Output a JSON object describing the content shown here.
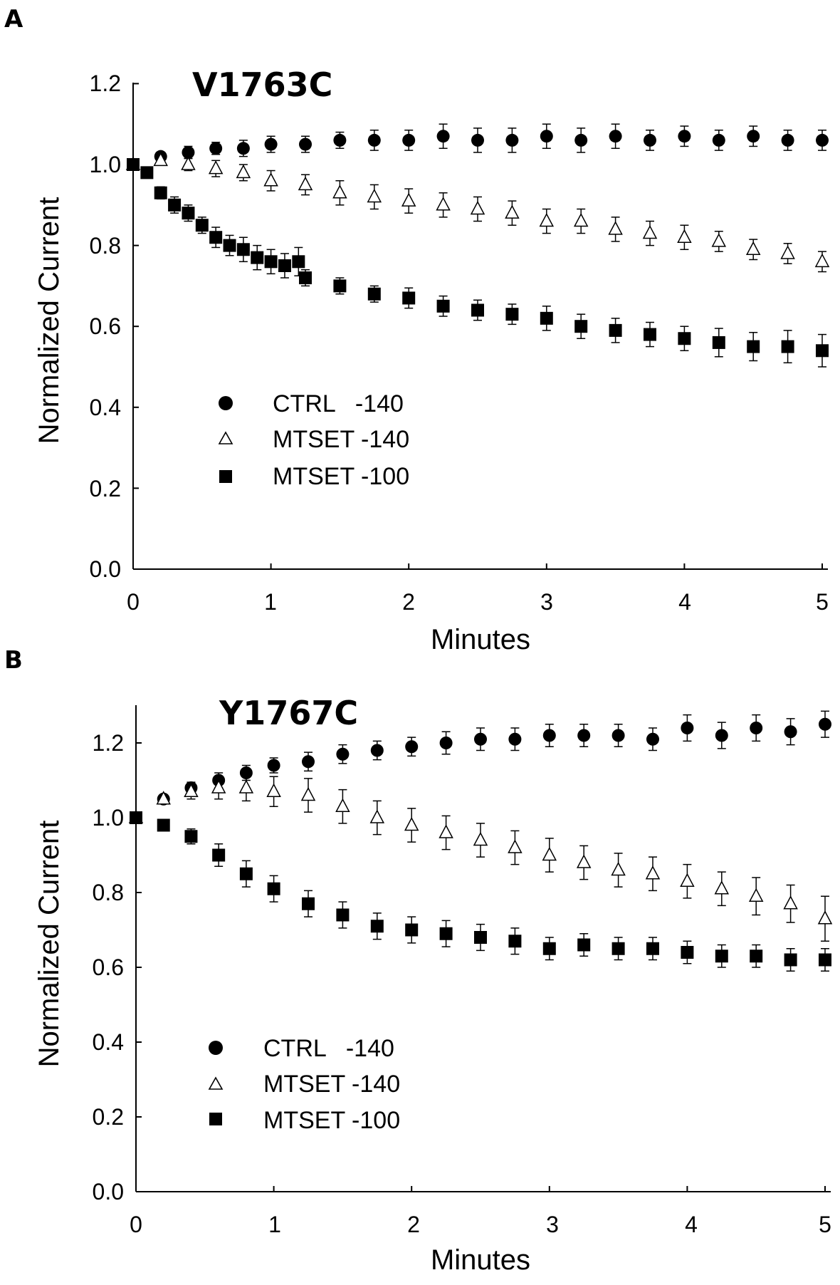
{
  "chart_data": [
    {
      "panel": "A",
      "title": "V1763C",
      "type": "scatter",
      "xlabel": "Minutes",
      "ylabel": "Normalized Current",
      "xlim": [
        0,
        5
      ],
      "ylim": [
        0,
        1.2
      ],
      "xticks": [
        "0",
        "1",
        "2",
        "3",
        "4",
        "5"
      ],
      "yticks": [
        "0.0",
        "0.2",
        "0.4",
        "0.6",
        "0.8",
        "1.0",
        "1.2"
      ],
      "series": [
        {
          "name": "CTRL   -140",
          "marker": "circle",
          "x": [
            0,
            0.2,
            0.4,
            0.6,
            0.8,
            1.0,
            1.25,
            1.5,
            1.75,
            2.0,
            2.25,
            2.5,
            2.75,
            3.0,
            3.25,
            3.5,
            3.75,
            4.0,
            4.25,
            4.5,
            4.75,
            5.0
          ],
          "y": [
            1.0,
            1.02,
            1.03,
            1.04,
            1.04,
            1.05,
            1.05,
            1.06,
            1.06,
            1.06,
            1.07,
            1.06,
            1.06,
            1.07,
            1.06,
            1.07,
            1.06,
            1.07,
            1.06,
            1.07,
            1.06,
            1.06
          ],
          "err": [
            0.005,
            0.01,
            0.015,
            0.015,
            0.02,
            0.02,
            0.02,
            0.02,
            0.025,
            0.025,
            0.03,
            0.03,
            0.03,
            0.03,
            0.03,
            0.03,
            0.025,
            0.025,
            0.025,
            0.025,
            0.025,
            0.025
          ]
        },
        {
          "name": "MTSET -140",
          "marker": "triangle",
          "x": [
            0,
            0.2,
            0.4,
            0.6,
            0.8,
            1.0,
            1.25,
            1.5,
            1.75,
            2.0,
            2.25,
            2.5,
            2.75,
            3.0,
            3.25,
            3.5,
            3.75,
            4.0,
            4.25,
            4.5,
            4.75,
            5.0
          ],
          "y": [
            1.0,
            1.01,
            1.0,
            0.99,
            0.98,
            0.96,
            0.95,
            0.93,
            0.92,
            0.91,
            0.9,
            0.89,
            0.88,
            0.86,
            0.86,
            0.84,
            0.83,
            0.82,
            0.81,
            0.79,
            0.78,
            0.76
          ],
          "err": [
            0.005,
            0.01,
            0.015,
            0.02,
            0.02,
            0.025,
            0.025,
            0.03,
            0.03,
            0.03,
            0.03,
            0.03,
            0.03,
            0.03,
            0.03,
            0.03,
            0.03,
            0.03,
            0.025,
            0.025,
            0.025,
            0.025
          ]
        },
        {
          "name": "MTSET -100",
          "marker": "square",
          "x": [
            0,
            0.1,
            0.2,
            0.3,
            0.4,
            0.5,
            0.6,
            0.7,
            0.8,
            0.9,
            1.0,
            1.1,
            1.2,
            1.25,
            1.5,
            1.75,
            2.0,
            2.25,
            2.5,
            2.75,
            3.0,
            3.25,
            3.5,
            3.75,
            4.0,
            4.25,
            4.5,
            4.75,
            5.0
          ],
          "y": [
            1.0,
            0.98,
            0.93,
            0.9,
            0.88,
            0.85,
            0.82,
            0.8,
            0.79,
            0.77,
            0.76,
            0.75,
            0.76,
            0.72,
            0.7,
            0.68,
            0.67,
            0.65,
            0.64,
            0.63,
            0.62,
            0.6,
            0.59,
            0.58,
            0.57,
            0.56,
            0.55,
            0.55,
            0.54
          ],
          "err": [
            0.005,
            0.01,
            0.015,
            0.02,
            0.02,
            0.02,
            0.025,
            0.025,
            0.03,
            0.03,
            0.03,
            0.03,
            0.035,
            0.02,
            0.02,
            0.02,
            0.025,
            0.025,
            0.025,
            0.025,
            0.03,
            0.03,
            0.03,
            0.03,
            0.03,
            0.035,
            0.035,
            0.04,
            0.04
          ]
        }
      ]
    },
    {
      "panel": "B",
      "title": "Y1767C",
      "type": "scatter",
      "xlabel": "Minutes",
      "ylabel": "Normalized Current",
      "xlim": [
        0,
        5
      ],
      "ylim": [
        0,
        1.3
      ],
      "xticks": [
        "0",
        "1",
        "2",
        "3",
        "4",
        "5"
      ],
      "yticks": [
        "0.0",
        "0.2",
        "0.4",
        "0.6",
        "0.8",
        "1.0",
        "1.2"
      ],
      "series": [
        {
          "name": "CTRL   -140",
          "marker": "circle",
          "x": [
            0,
            0.2,
            0.4,
            0.6,
            0.8,
            1.0,
            1.25,
            1.5,
            1.75,
            2.0,
            2.25,
            2.5,
            2.75,
            3.0,
            3.25,
            3.5,
            3.75,
            4.0,
            4.25,
            4.5,
            4.75,
            5.0
          ],
          "y": [
            1.0,
            1.05,
            1.08,
            1.1,
            1.12,
            1.14,
            1.15,
            1.17,
            1.18,
            1.19,
            1.2,
            1.21,
            1.21,
            1.22,
            1.22,
            1.22,
            1.21,
            1.24,
            1.22,
            1.24,
            1.23,
            1.25
          ],
          "err": [
            0.005,
            0.01,
            0.015,
            0.02,
            0.02,
            0.02,
            0.025,
            0.025,
            0.025,
            0.025,
            0.03,
            0.03,
            0.03,
            0.03,
            0.03,
            0.03,
            0.03,
            0.035,
            0.035,
            0.035,
            0.035,
            0.035
          ]
        },
        {
          "name": "MTSET -140",
          "marker": "triangle",
          "x": [
            0,
            0.2,
            0.4,
            0.6,
            0.8,
            1.0,
            1.25,
            1.5,
            1.75,
            2.0,
            2.25,
            2.5,
            2.75,
            3.0,
            3.25,
            3.5,
            3.75,
            4.0,
            4.25,
            4.5,
            4.75,
            5.0
          ],
          "y": [
            1.0,
            1.05,
            1.07,
            1.08,
            1.08,
            1.07,
            1.06,
            1.03,
            1.0,
            0.98,
            0.96,
            0.94,
            0.92,
            0.9,
            0.88,
            0.86,
            0.85,
            0.83,
            0.81,
            0.79,
            0.77,
            0.73
          ],
          "err": [
            0.005,
            0.01,
            0.02,
            0.03,
            0.035,
            0.04,
            0.045,
            0.045,
            0.045,
            0.045,
            0.045,
            0.045,
            0.045,
            0.045,
            0.045,
            0.045,
            0.045,
            0.045,
            0.045,
            0.05,
            0.05,
            0.06
          ]
        },
        {
          "name": "MTSET -100",
          "marker": "square",
          "x": [
            0,
            0.2,
            0.4,
            0.6,
            0.8,
            1.0,
            1.25,
            1.5,
            1.75,
            2.0,
            2.25,
            2.5,
            2.75,
            3.0,
            3.25,
            3.5,
            3.75,
            4.0,
            4.25,
            4.5,
            4.75,
            5.0
          ],
          "y": [
            1.0,
            0.98,
            0.95,
            0.9,
            0.85,
            0.81,
            0.77,
            0.74,
            0.71,
            0.7,
            0.69,
            0.68,
            0.67,
            0.65,
            0.66,
            0.65,
            0.65,
            0.64,
            0.63,
            0.63,
            0.62,
            0.62
          ],
          "err": [
            0.005,
            0.01,
            0.02,
            0.03,
            0.035,
            0.035,
            0.035,
            0.035,
            0.035,
            0.035,
            0.035,
            0.035,
            0.035,
            0.03,
            0.03,
            0.03,
            0.03,
            0.03,
            0.03,
            0.03,
            0.03,
            0.03
          ]
        }
      ]
    }
  ]
}
